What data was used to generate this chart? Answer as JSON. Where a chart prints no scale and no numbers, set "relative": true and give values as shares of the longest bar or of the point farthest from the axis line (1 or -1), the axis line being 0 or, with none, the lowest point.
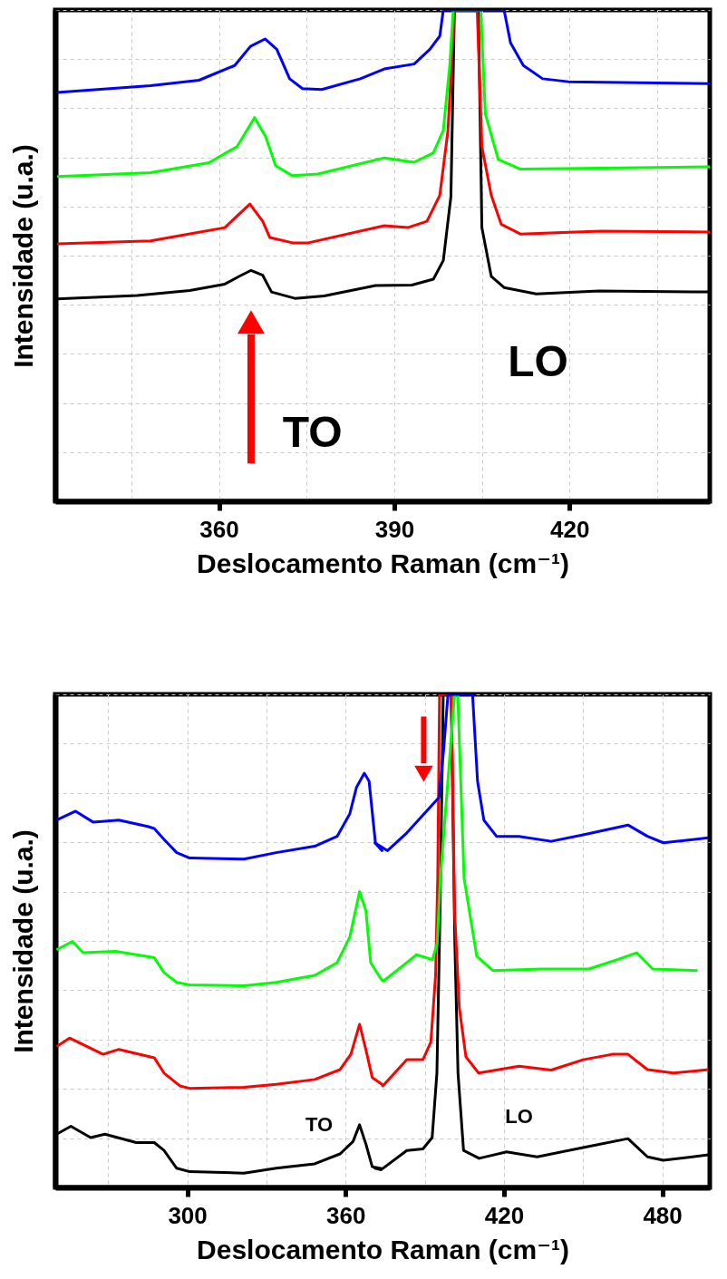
{
  "chart_data": [
    {
      "type": "line",
      "xlabel": "Deslocamento Raman (cm⁻¹)",
      "ylabel": "Intensidade (u.a.)",
      "relative": true,
      "grid": true,
      "xlim": [
        332,
        444
      ],
      "xticks": [
        {
          "value": 345,
          "label": null
        },
        360,
        {
          "value": 375,
          "label": null
        },
        390,
        {
          "value": 405,
          "label": null
        },
        420,
        {
          "value": 435,
          "label": null
        }
      ],
      "annotations": [
        "TO",
        "LO"
      ],
      "series": [
        {
          "color": "#000000",
          "x": [
            332.3,
            346,
            355,
            361,
            363.5,
            365.5,
            367.5,
            369,
            373,
            378,
            386.8,
            393,
            396.7,
            398.4,
            399.7,
            400.3,
            404.4,
            405.0,
            406.6,
            408.8,
            414.3,
            425,
            444
          ],
          "values": [
            0.412,
            0.419,
            0.429,
            0.442,
            0.458,
            0.47,
            0.46,
            0.426,
            0.413,
            0.418,
            0.439,
            0.44,
            0.452,
            0.49,
            0.62,
            1,
            1,
            0.557,
            0.458,
            0.435,
            0.422,
            0.428,
            0.426
          ]
        },
        {
          "color": "#ff0000",
          "x": [
            332.3,
            348.3,
            361,
            365.3,
            367.5,
            368.7,
            372.6,
            375.3,
            388.3,
            392.3,
            395.6,
            397.8,
            399.2,
            400.3,
            404.2,
            405,
            406.6,
            408.3,
            411.6,
            425.4,
            444
          ],
          "values": [
            0.524,
            0.53,
            0.557,
            0.605,
            0.57,
            0.537,
            0.526,
            0.526,
            0.561,
            0.557,
            0.57,
            0.623,
            0.755,
            1,
            1,
            0.722,
            0.623,
            0.564,
            0.544,
            0.55,
            0.548
          ]
        },
        {
          "color": "#00ff00",
          "x": [
            332.3,
            348.3,
            358.3,
            363.1,
            366.1,
            368,
            369.7,
            372.5,
            376.9,
            388.3,
            393.4,
            396.7,
            398.4,
            399.5,
            400.1,
            404.8,
            405.6,
            407.8,
            411.6,
            425.4,
            444
          ],
          "values": [
            0.661,
            0.669,
            0.689,
            0.722,
            0.781,
            0.742,
            0.683,
            0.663,
            0.666,
            0.699,
            0.69,
            0.709,
            0.755,
            0.887,
            1,
            1,
            0.788,
            0.696,
            0.676,
            0.678,
            0.681
          ]
        },
        {
          "color": "#0000ff",
          "x": [
            332.3,
            348.3,
            356.6,
            362.7,
            365.4,
            367.9,
            369.9,
            372.1,
            374.3,
            377.6,
            384.2,
            388.3,
            393.4,
            396.1,
            397.8,
            398.4,
            408.8,
            409.9,
            412.1,
            415.4,
            419.8,
            444
          ],
          "values": [
            0.832,
            0.846,
            0.857,
            0.887,
            0.926,
            0.941,
            0.92,
            0.86,
            0.84,
            0.838,
            0.86,
            0.88,
            0.89,
            0.92,
            0.947,
            1,
            1,
            0.933,
            0.887,
            0.86,
            0.854,
            0.85
          ]
        }
      ]
    },
    {
      "type": "line",
      "xlabel": "Deslocamento Raman (cm⁻¹)",
      "ylabel": "Intensidade (u.a.)",
      "relative": true,
      "grid": true,
      "xlim": [
        250,
        498
      ],
      "xticks": [
        {
          "value": 270,
          "label": null
        },
        300,
        {
          "value": 330,
          "label": null
        },
        360,
        {
          "value": 390,
          "label": null
        },
        420,
        {
          "value": 450,
          "label": null
        },
        480
      ],
      "annotations": [
        "TO",
        "LO"
      ],
      "series": [
        {
          "color": "#000000",
          "x": [
            250.5,
            255.9,
            263.4,
            268.8,
            280.7,
            287.5,
            291.2,
            296,
            300.9,
            321.5,
            333.7,
            348.3,
            357.9,
            362.8,
            365.3,
            367.7,
            370.1,
            373.8,
            371.1,
            373.5,
            383.2,
            389.3,
            392.8,
            394.6,
            395.8,
            397.0,
            400.0,
            401.4,
            402.6,
            404.7,
            410.6,
            421.0,
            432.6,
            450,
            467,
            474.4,
            480.4,
            497.4
          ],
          "values": [
            0.108,
            0.124,
            0.101,
            0.108,
            0.091,
            0.091,
            0.075,
            0.039,
            0.032,
            0.029,
            0.039,
            0.048,
            0.068,
            0.093,
            0.127,
            0.088,
            0.042,
            0.038,
            0.039,
            0.036,
            0.075,
            0.078,
            0.101,
            0.232,
            0.561,
            1,
            1,
            0.495,
            0.232,
            0.075,
            0.059,
            0.072,
            0.062,
            0.081,
            0.099,
            0.062,
            0.055,
            0.066
          ]
        },
        {
          "color": "#ff0000",
          "x": [
            250.5,
            255.4,
            268.1,
            274.1,
            287.5,
            291.2,
            297.2,
            300.9,
            321.5,
            333.7,
            348.3,
            357.9,
            362.0,
            365.3,
            367.7,
            370.1,
            373.8,
            374.1,
            383.2,
            389.3,
            392.3,
            394.1,
            394.9,
            395.6,
            400.1,
            401.3,
            403.1,
            405.6,
            410.4,
            425.7,
            437.9,
            450,
            461,
            467,
            474.4,
            484.2,
            497.4
          ],
          "values": [
            0.286,
            0.303,
            0.27,
            0.28,
            0.263,
            0.232,
            0.206,
            0.201,
            0.203,
            0.209,
            0.219,
            0.239,
            0.27,
            0.331,
            0.279,
            0.223,
            0.209,
            0.206,
            0.259,
            0.259,
            0.295,
            0.43,
            0.627,
            1,
            1,
            0.561,
            0.364,
            0.265,
            0.232,
            0.246,
            0.238,
            0.259,
            0.27,
            0.27,
            0.239,
            0.232,
            0.239
          ]
        },
        {
          "color": "#00ff00",
          "x": [
            250.5,
            256.5,
            260.5,
            272.9,
            287.5,
            291.2,
            296,
            300.9,
            321.5,
            333.7,
            348.3,
            356.8,
            361.6,
            365.3,
            367.7,
            369.5,
            373.8,
            374.7,
            383.2,
            386.9,
            392.9,
            394.7,
            395.9,
            401.3,
            402.5,
            404.9,
            409.7,
            415.8,
            433.9,
            452.1,
            463,
            470.3,
            476.4,
            493.4
          ],
          "values": [
            0.482,
            0.499,
            0.476,
            0.479,
            0.466,
            0.436,
            0.416,
            0.411,
            0.409,
            0.416,
            0.43,
            0.456,
            0.508,
            0.6,
            0.561,
            0.456,
            0.42,
            0.42,
            0.456,
            0.472,
            0.462,
            0.495,
            0.627,
            1,
            1,
            0.627,
            0.469,
            0.44,
            0.443,
            0.443,
            0.462,
            0.476,
            0.443,
            0.44
          ]
        },
        {
          "color": "#0000ff",
          "x": [
            250.5,
            257.7,
            264.3,
            274.1,
            285,
            287.5,
            291.2,
            296,
            300.9,
            321.5,
            333.7,
            348.3,
            356.8,
            361.6,
            364.1,
            367.1,
            368.9,
            371.3,
            373.8,
            371.1,
            375.9,
            383.2,
            389.3,
            395.4,
            397.2,
            398.8,
            408.1,
            410,
            412.4,
            417.2,
            425.7,
            437.9,
            450,
            467,
            474.4,
            480.4,
            497.4
          ],
          "values": [
            0.745,
            0.763,
            0.741,
            0.745,
            0.732,
            0.728,
            0.706,
            0.679,
            0.668,
            0.666,
            0.679,
            0.692,
            0.712,
            0.758,
            0.811,
            0.84,
            0.824,
            0.699,
            0.683,
            0.699,
            0.683,
            0.719,
            0.755,
            0.791,
            0.89,
            1,
            1,
            0.824,
            0.745,
            0.712,
            0.712,
            0.702,
            0.715,
            0.735,
            0.712,
            0.699,
            0.709
          ]
        }
      ]
    }
  ]
}
